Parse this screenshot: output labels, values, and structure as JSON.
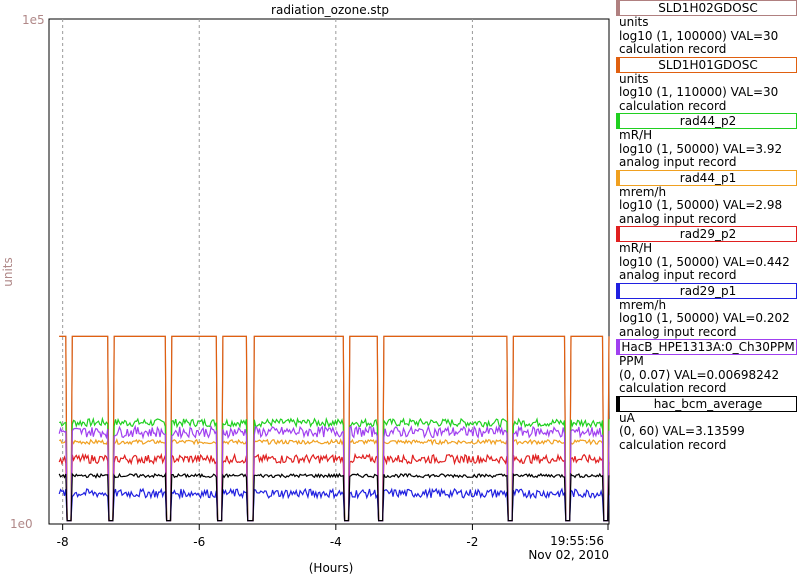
{
  "window": {
    "title": "radiation_ozone.stp"
  },
  "chart_data": {
    "type": "line",
    "title": "radiation_ozone.stp",
    "xlabel": "(Hours)",
    "ylabel": "units",
    "yscale": "log",
    "ylim": [
      1,
      100000
    ],
    "xlim": [
      -8.2,
      0
    ],
    "y_tick_labels": [
      "1e5",
      "1e0"
    ],
    "x_ticks": [
      -8,
      -6,
      -4,
      -2
    ],
    "x_tick_labels": [
      "-8",
      "-6",
      "-4",
      "-2"
    ],
    "end_time_label": "19:55:56",
    "end_date_label": "Nov 02, 2010",
    "grid": true,
    "legend_position": "right",
    "series": [
      {
        "name": "SLD1H02GDOSC",
        "color": "#b08080",
        "units": "units",
        "range": "log10 (1, 100000) VAL=30",
        "record": "calculation record",
        "value": 30
      },
      {
        "name": "SLD1H01GDOSC",
        "color": "#e06010",
        "units": "units",
        "range": "log10 (1, 110000) VAL=30",
        "record": "calculation record",
        "value": 30
      },
      {
        "name": "rad44_p2",
        "color": "#20d020",
        "units": "mR/H",
        "range": "log10 (1, 50000) VAL=3.92",
        "record": "analog input record",
        "value": 3.92
      },
      {
        "name": "rad44_p1",
        "color": "#f0a020",
        "units": "mrem/h",
        "range": "log10 (1, 50000) VAL=2.98",
        "record": "analog input record",
        "value": 2.98
      },
      {
        "name": "rad29_p2",
        "color": "#e02020",
        "units": "mR/H",
        "range": "log10 (1, 50000) VAL=0.442",
        "record": "analog input record",
        "value": 0.442
      },
      {
        "name": "rad29_p1",
        "color": "#2020e0",
        "units": "mrem/h",
        "range": "log10 (1, 50000) VAL=0.202",
        "record": "analog input record",
        "value": 0.202
      },
      {
        "name": "HacB_HPE1313A:0_Ch30PPM",
        "color": "#a040f0",
        "units": "PPM",
        "range": "(0, 0.07) VAL=0.00698242",
        "record": "calculation record",
        "value": 0.00698242
      },
      {
        "name": "hac_bcm_average",
        "color": "#000000",
        "units": "uA",
        "range": "(0, 60) VAL=3.13599",
        "record": "calculation record",
        "value": 3.13599
      }
    ]
  }
}
